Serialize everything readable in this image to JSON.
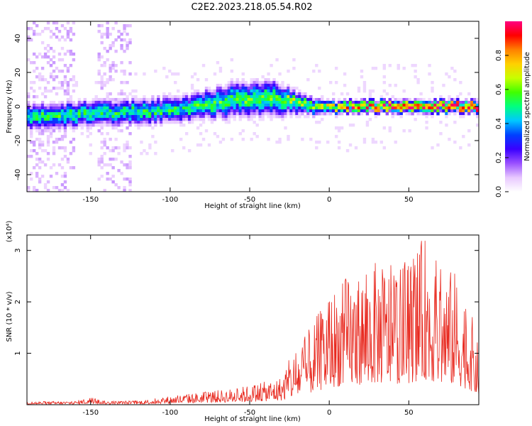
{
  "title": "C2E2.2023.218.05.54.R02",
  "chart_data": [
    {
      "type": "heatmap",
      "xlabel": "Height of straight line (km)",
      "ylabel": "Frequency (Hz)",
      "xlim": [
        -190,
        94
      ],
      "ylim": [
        -50,
        50
      ],
      "xticks": [
        -150,
        -100,
        -50,
        0,
        50
      ],
      "yticks": [
        -40,
        -20,
        0,
        20,
        40
      ],
      "colorbar": {
        "label": "Normalized spectral amplitude",
        "range": [
          0,
          1
        ],
        "ticks": [
          0.0,
          0.2,
          0.4,
          0.6,
          0.8
        ],
        "tick_labels": [
          "0.0",
          "0.2",
          "0.4",
          "0.6",
          "0.8"
        ],
        "colormap": [
          "#ffffff",
          "#e8c8ff",
          "#9a50ff",
          "#3a00ff",
          "#0040ff",
          "#00c8ff",
          "#00ff80",
          "#40ff00",
          "#c8ff00",
          "#ffd000",
          "#ff8000",
          "#ff0000",
          "#ff0080"
        ]
      },
      "ridge": {
        "x": [
          -190,
          -170,
          -150,
          -130,
          -110,
          -90,
          -70,
          -60,
          -50,
          -40,
          -35,
          -30,
          -20,
          -10,
          0,
          10,
          20,
          40,
          60,
          80,
          94
        ],
        "center_hz": [
          -6,
          -5,
          -4,
          -4,
          -3,
          -1,
          2,
          4,
          4,
          5,
          6,
          4,
          2,
          0,
          -1,
          0,
          0,
          0,
          0,
          0,
          0
        ],
        "halfwidth_hz": [
          6,
          6,
          6,
          6,
          6,
          6,
          7,
          8,
          8,
          8,
          8,
          7,
          5,
          4,
          3,
          3,
          3,
          3,
          3,
          3,
          3
        ],
        "peak_amplitude": [
          0.5,
          0.5,
          0.5,
          0.5,
          0.5,
          0.5,
          0.55,
          0.55,
          0.55,
          0.55,
          0.6,
          0.6,
          0.6,
          0.6,
          0.65,
          0.8,
          0.85,
          0.9,
          0.9,
          0.9,
          0.9
        ]
      }
    },
    {
      "type": "line",
      "xlabel": "Height of straight line (km)",
      "ylabel": "SNR (10 * v/v)",
      "y_multiplier_label": "(x10⁴)",
      "xlim": [
        -190,
        94
      ],
      "ylim": [
        0,
        3.3
      ],
      "xticks": [
        -150,
        -100,
        -50,
        0,
        50
      ],
      "yticks": [
        1,
        2,
        3
      ],
      "color": "#e8281e",
      "envelope": {
        "x": [
          -190,
          -160,
          -150,
          -140,
          -120,
          -100,
          -80,
          -60,
          -40,
          -30,
          -25,
          -20,
          -10,
          0,
          10,
          20,
          30,
          40,
          50,
          60,
          70,
          80,
          90,
          94
        ],
        "y": [
          0.06,
          0.07,
          0.15,
          0.07,
          0.08,
          0.17,
          0.25,
          0.32,
          0.45,
          0.55,
          0.9,
          1.1,
          1.6,
          2.2,
          2.5,
          2.6,
          2.8,
          2.7,
          2.8,
          3.3,
          2.7,
          2.6,
          1.7,
          1.1
        ]
      }
    }
  ]
}
